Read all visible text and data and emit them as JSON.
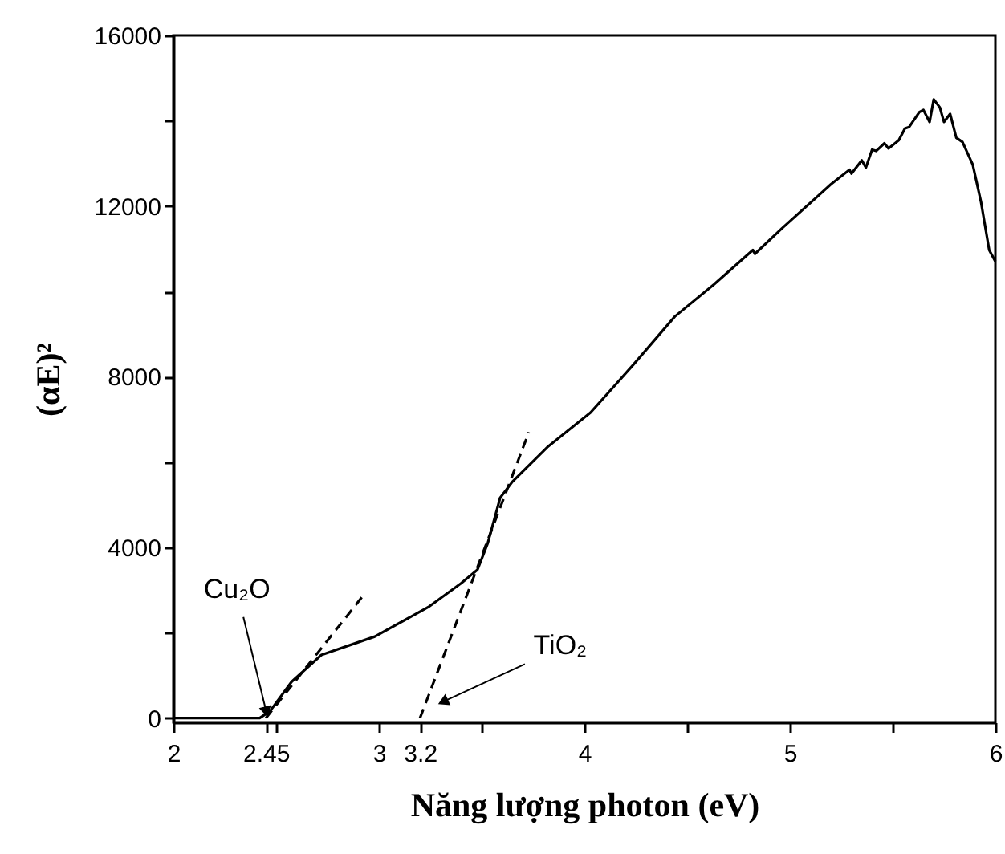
{
  "chart_data": {
    "type": "line",
    "xlabel": "Năng lượng photon (eV)",
    "ylabel": "(αE)²",
    "xlim": [
      2,
      6
    ],
    "ylim": [
      -100,
      16000
    ],
    "xticks": [
      2,
      2.45,
      {
        "value": 2.5,
        "label": null
      },
      3,
      3.2,
      {
        "value": 3.5,
        "label": null
      },
      4,
      {
        "value": 4.5,
        "label": null
      },
      5,
      {
        "value": 5.5,
        "label": null
      },
      6
    ],
    "yticks": [
      0,
      {
        "value": 2000,
        "label": null
      },
      4000,
      {
        "value": 6000,
        "label": null
      },
      8000,
      {
        "value": 10000,
        "label": null
      },
      12000,
      {
        "value": 14000,
        "label": null
      },
      16000
    ],
    "grid": false,
    "series": [
      {
        "color": "#000000",
        "line_style": "solid",
        "x": [
          2,
          2.42,
          2.47,
          2.575,
          2.72,
          2.98,
          3.24,
          3.4,
          3.48,
          3.53,
          3.59,
          3.65,
          3.82,
          4.03,
          4.24,
          4.44,
          4.63,
          4.82,
          4.83,
          4.96,
          5.2,
          5.29,
          5.3,
          5.35,
          5.37,
          5.4,
          5.42,
          5.46,
          5.48,
          5.53,
          5.56,
          5.58,
          5.63,
          5.65,
          5.68,
          5.7,
          5.73,
          5.75,
          5.78,
          5.81,
          5.84,
          5.89,
          5.93,
          5.97,
          6.0
        ],
        "values": [
          0,
          0,
          160,
          850,
          1480,
          1910,
          2600,
          3160,
          3480,
          4100,
          5160,
          5540,
          6350,
          7160,
          8290,
          9410,
          10160,
          10970,
          10880,
          11470,
          12510,
          12850,
          12760,
          13070,
          12900,
          13320,
          13290,
          13470,
          13350,
          13540,
          13820,
          13850,
          14200,
          14250,
          13970,
          14500,
          14310,
          13970,
          14160,
          13600,
          13500,
          12970,
          12100,
          10970,
          10700
        ]
      },
      {
        "color": "#000000",
        "line_style": "dashed",
        "x": [
          2.45,
          2.92
        ],
        "values": [
          0,
          2850
        ]
      },
      {
        "color": "#000000",
        "line_style": "dashed",
        "x": [
          3.2,
          3.73
        ],
        "values": [
          0,
          6700
        ]
      }
    ],
    "annotations": [
      {
        "text": "Cu₂O",
        "x": 2.45,
        "y": 0
      },
      {
        "text": "TiO₂",
        "x": 3.32,
        "y": 400
      }
    ]
  }
}
